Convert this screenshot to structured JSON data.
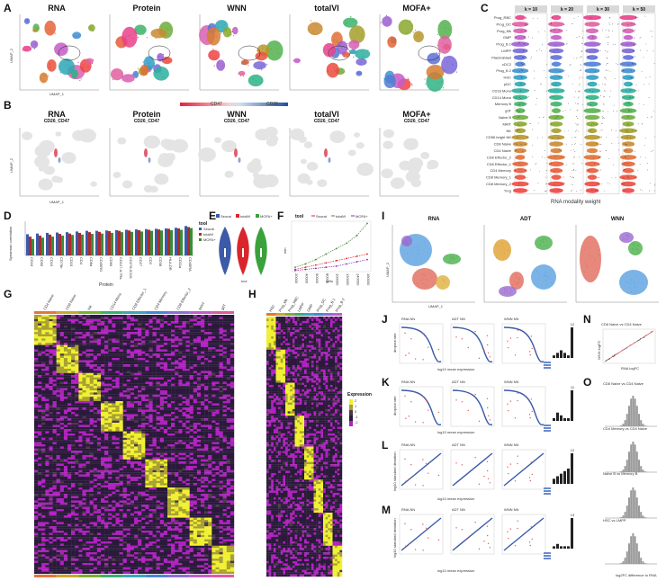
{
  "panels": {
    "A": {
      "label": "A",
      "titles": [
        "RNA",
        "Protein",
        "WNN",
        "totalVI",
        "MOFA+"
      ],
      "xlabel": "UMAP_1",
      "ylabel": "UMAP_2"
    },
    "B": {
      "label": "B",
      "titles": [
        "RNA",
        "Protein",
        "WNN",
        "totalVI",
        "MOFA+"
      ],
      "subtitle": "CD26_CD47",
      "legend_left": "CD47",
      "legend_right": "CD26",
      "xlabel": "UMAP_1",
      "ylabel": "UMAP_2"
    },
    "C": {
      "label": "C",
      "k_labels": [
        "k = 10",
        "k = 20",
        "k = 30",
        "k = 50"
      ],
      "cell_types": [
        "Prog_RBC",
        "Prog_DC",
        "Prog_Mk",
        "GMP",
        "Prog_B 1",
        "LMPP",
        "Plasmablast",
        "cDC2",
        "Prog_B 2",
        "HSC",
        "pDC",
        "CD16 Mono",
        "CD14 Mono",
        "Memory B",
        "gdT",
        "Naive B",
        "MAIT",
        "NK",
        "CD56 bright NK",
        "CD8 Naive",
        "CD4 Naive",
        "CD8 Effector_2",
        "CD8 Effector_1",
        "CD4 Memory",
        "CD8 Memory_1",
        "CD8 Memory_2",
        "Treg"
      ],
      "xlabel": "RNA modality weight",
      "colors": [
        "#e8418a",
        "#e0609e",
        "#d85fb0",
        "#c45cc8",
        "#9c5fd0",
        "#7a66d8",
        "#5f6fd8",
        "#4e80d4",
        "#3f8fd0",
        "#2f9dc6",
        "#2ba7b5",
        "#2aaf9e",
        "#2eb384",
        "#3cb36a",
        "#54b14e",
        "#6fad3c",
        "#8aa72e",
        "#a3a02a",
        "#b8962c",
        "#c98a30",
        "#d67d33",
        "#e07035",
        "#e56438",
        "#e85a3b",
        "#eb513d",
        "#ec4a40",
        "#ee4443"
      ]
    },
    "D": {
      "label": "D",
      "ylabel": "Spearman correlation",
      "xlabel": "Protein",
      "legend_title": "tool",
      "legend": [
        "Seurat",
        "totalVI",
        "MOFA+"
      ],
      "proteins": [
        "CD16",
        "CD56",
        "CD19",
        "CD79b",
        "CD15",
        "CD4",
        "CD8a",
        "CD45RO",
        "CD69",
        "CD127-IL7Ra",
        "CD278-ICOS",
        "CD27",
        "CD3",
        "CD38",
        "HLA.DR",
        "CD11a",
        "CD45RA"
      ],
      "series": [
        {
          "name": "Seurat",
          "values": [
            0.62,
            0.64,
            0.66,
            0.67,
            0.68,
            0.7,
            0.72,
            0.72,
            0.73,
            0.74,
            0.75,
            0.76,
            0.77,
            0.78,
            0.79,
            0.81,
            0.86
          ]
        },
        {
          "name": "totalVI",
          "values": [
            0.55,
            0.58,
            0.61,
            0.63,
            0.64,
            0.66,
            0.68,
            0.69,
            0.71,
            0.72,
            0.73,
            0.74,
            0.75,
            0.76,
            0.78,
            0.79,
            0.83
          ]
        },
        {
          "name": "MOFA+",
          "values": [
            0.48,
            0.52,
            0.55,
            0.58,
            0.6,
            0.61,
            0.63,
            0.64,
            0.66,
            0.68,
            0.69,
            0.7,
            0.72,
            0.73,
            0.74,
            0.75,
            0.8
          ]
        }
      ],
      "colors": [
        "#3b5aa8",
        "#b02a2a",
        "#3a8c3a"
      ]
    },
    "E": {
      "label": "E",
      "legend": [
        "Seurat",
        "totalVI",
        "MOFA+"
      ],
      "xlabel": "tool"
    },
    "F": {
      "label": "F",
      "legend_title": "tool",
      "legend": [
        "Seurat",
        "totalVI",
        "MOFA+"
      ],
      "xlabel": "cells",
      "ylabel": "min",
      "x": [
        "20000",
        "40000",
        "60000",
        "80000",
        "100000",
        "120000",
        "140000",
        "160000"
      ],
      "series": [
        {
          "name": "Seurat",
          "values": [
            2,
            4,
            6,
            8,
            10,
            12,
            14,
            16
          ]
        },
        {
          "name": "totalVI",
          "values": [
            4,
            7,
            11,
            16,
            21,
            26,
            33,
            44
          ]
        },
        {
          "name": "MOFA+",
          "values": [
            1,
            2,
            3,
            4,
            5,
            7,
            9,
            11
          ]
        }
      ]
    },
    "G": {
      "label": "G",
      "columns": [
        "CD4 Naive",
        "CD8 Naive",
        "NK",
        "CD14 Mono",
        "CD8 Effector_1",
        "CD4 Memory",
        "CD8 Effector_2",
        "MAIT",
        "gdT"
      ]
    },
    "H": {
      "label": "H",
      "columns": [
        "HSC",
        "Prog_Mk",
        "Prog_RBC",
        "LMPP",
        "GMP",
        "Prog_DC",
        "Prog_B 1",
        "Prog_B 2"
      ],
      "legend_title": "Expression",
      "legend_ticks": [
        "2",
        "1",
        "0",
        "-1",
        "-2"
      ]
    },
    "I": {
      "label": "I",
      "titles": [
        "RNA",
        "ADT",
        "WNN"
      ],
      "xlabel": "UMAP_1",
      "ylabel": "UMAP_2"
    },
    "J": {
      "label": "J",
      "titles": [
        "RNA NN",
        "ADT NN",
        "WNN NN"
      ],
      "ylabel": "dropout rate",
      "xlabel": "log10 mean expression",
      "bar_values": [
        1,
        2,
        3,
        2,
        1,
        12
      ],
      "bar_top_label": "12"
    },
    "K": {
      "label": "K",
      "titles": [
        "RNA NN",
        "ADT NN",
        "WNN NN"
      ],
      "ylabel": "dropout rate",
      "xlabel": "log10 mean expression",
      "bar_values": [
        1,
        3,
        2,
        1,
        1,
        11
      ],
      "bar_top_label": "11"
    },
    "L": {
      "label": "L",
      "titles": [
        "RNA NN",
        "ADT NN",
        "WNN NN"
      ],
      "ylabel": "log10 standard deviation",
      "xlabel": "log10 mean expression",
      "bar_values": [
        2,
        3,
        4,
        5,
        6,
        12
      ],
      "bar_top_label": "12"
    },
    "M": {
      "label": "M",
      "titles": [
        "RNA NN",
        "ADT NN",
        "WNN NN"
      ],
      "ylabel": "log10 standard deviation",
      "xlabel": "log10 mean expression",
      "bar_values": [
        1,
        2,
        1,
        1,
        1,
        13
      ],
      "bar_top_label": "13"
    },
    "N": {
      "label": "N",
      "title": "CD8 Naive vs CD4 Naive",
      "xlabel": "RNA logFC",
      "ylabel": "WNN logFC"
    },
    "O": {
      "label": "O",
      "titles": [
        "CD8 Naive vs CD4 Naive",
        "CD4 Memory vs CD4 Naive",
        "Naive B vs Memory B",
        "HSC vs LMPP"
      ],
      "xlabel": "log2FC difference to RNA",
      "ylabel": "frequency"
    }
  }
}
